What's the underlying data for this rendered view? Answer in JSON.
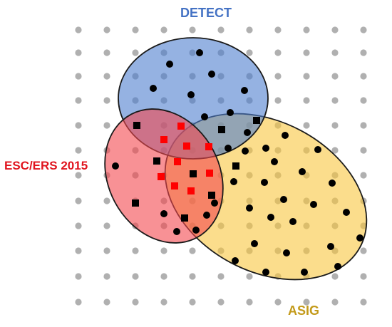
{
  "diagram": {
    "sets": [
      {
        "key": "detect",
        "label": "DETECT",
        "fill": "#4f7ecf",
        "stroke": "#1a1a1a",
        "label_color": "#4472c4"
      },
      {
        "key": "esc",
        "label": "ESC/ERS 2015",
        "fill": "#f4474f",
        "stroke": "#1a1a1a",
        "label_color": "#e0141e"
      },
      {
        "key": "asig",
        "label": "ASIG",
        "fill": "#f8c640",
        "stroke": "#1a1a1a",
        "label_color": "#c39a1a"
      }
    ],
    "background_dot_color": "#b0b0b0",
    "marker_colors": {
      "circle": "#000000",
      "square_black": "#000000",
      "square_red": "#ff0000"
    }
  }
}
